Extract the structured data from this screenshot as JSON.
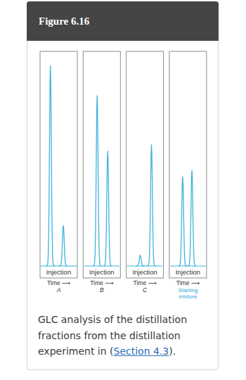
{
  "figure_label": "Figure 6.16",
  "caption": {
    "before": "GLC analysis of the distillation fractions from the distillation experiment in (",
    "link": "Section 4.3",
    "after": ")."
  },
  "chart_data": [
    {
      "type": "chromatogram",
      "title": "A",
      "annotation": "Injection",
      "xlabel": "Time ⟶",
      "x": [
        25,
        64
      ],
      "values": [
        94,
        19
      ],
      "xlim": [
        0,
        100
      ],
      "ylim": [
        0,
        100
      ],
      "tick_labels": false,
      "color": "#3fb4de"
    },
    {
      "type": "chromatogram",
      "title": "B",
      "annotation": "Injection",
      "xlabel": "Time ⟶",
      "x": [
        36,
        68
      ],
      "values": [
        80,
        54
      ],
      "xlim": [
        0,
        100
      ],
      "ylim": [
        0,
        100
      ],
      "tick_labels": false,
      "color": "#3fb4de"
    },
    {
      "type": "chromatogram",
      "title": "C",
      "annotation": "Injection",
      "xlabel": "Time ⟶",
      "x": [
        36,
        70
      ],
      "values": [
        5,
        57
      ],
      "xlim": [
        0,
        100
      ],
      "ylim": [
        0,
        100
      ],
      "tick_labels": false,
      "color": "#3fb4de"
    },
    {
      "type": "chromatogram",
      "title": "Starting mixture",
      "annotation": "Injection",
      "xlabel": "Time ⟶",
      "x": [
        34,
        62
      ],
      "values": [
        42,
        45
      ],
      "xlim": [
        0,
        100
      ],
      "ylim": [
        0,
        100
      ],
      "tick_labels": false,
      "color": "#3fb4de"
    }
  ]
}
